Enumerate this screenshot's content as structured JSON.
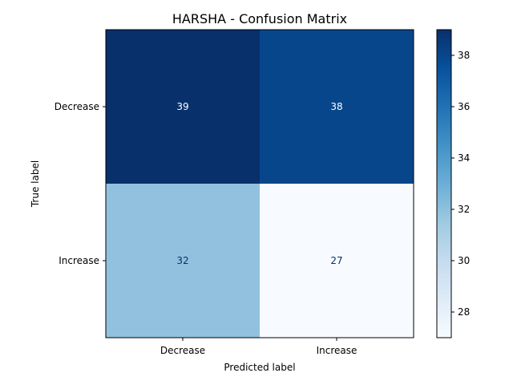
{
  "chart_data": {
    "type": "heatmap",
    "title": "HARSHA - Confusion Matrix",
    "xlabel": "Predicted label",
    "ylabel": "True label",
    "x_categories": [
      "Decrease",
      "Increase"
    ],
    "y_categories": [
      "Decrease",
      "Increase"
    ],
    "values": [
      [
        39,
        38
      ],
      [
        32,
        27
      ]
    ],
    "colormap": "Blues",
    "colorbar": {
      "range": [
        27,
        39
      ],
      "ticks": [
        28,
        30,
        32,
        34,
        36,
        38
      ],
      "tick_labels": [
        "28",
        "30",
        "32",
        "34",
        "36",
        "38"
      ]
    },
    "cell_colors": [
      [
        "#08306b",
        "#08468b"
      ],
      [
        "#92c1df",
        "#f7fbff"
      ]
    ],
    "cell_text_colors": [
      [
        "#ffffff",
        "#ffffff"
      ],
      [
        "#08306b",
        "#08306b"
      ]
    ]
  }
}
